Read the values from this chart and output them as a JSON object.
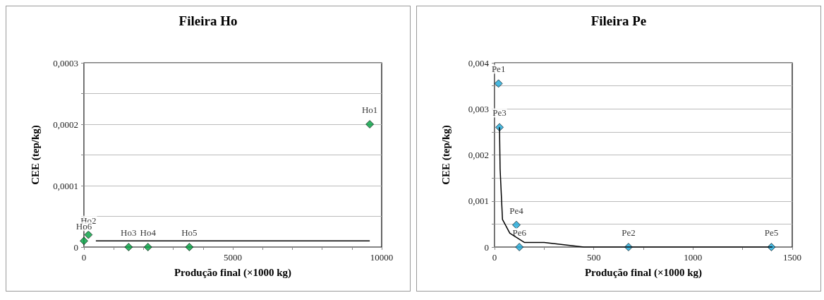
{
  "chart_data": [
    {
      "type": "scatter",
      "title": "Fileira Ho",
      "xlabel": "Produção final (×1000 kg)",
      "ylabel": "CEE (tep/kg)",
      "x": [
        9600,
        150,
        1500,
        2150,
        3540,
        0
      ],
      "series": [
        {
          "color": "#00a040",
          "marker": "diamond",
          "values": [
            0.0002,
            2e-05,
            0,
            0,
            0,
            1e-05
          ]
        },
        {
          "type": "line",
          "color": "#000000",
          "marker": "none",
          "x": [
            400,
            9600
          ],
          "values": [
            1e-05,
            1e-05
          ]
        }
      ],
      "annotations": [
        {
          "text": "Ho1",
          "x": 9600,
          "y": 0.0002
        },
        {
          "text": "Ho2",
          "x": 150,
          "y": 2e-05
        },
        {
          "text": "Ho3",
          "x": 1500,
          "y": 0
        },
        {
          "text": "Ho4",
          "x": 2150,
          "y": 0
        },
        {
          "text": "Ho5",
          "x": 3540,
          "y": 0
        },
        {
          "text": "Ho6",
          "x": 0,
          "y": 1e-05
        }
      ],
      "xlim": [
        0,
        10000
      ],
      "xticks": [
        0,
        {
          "value": 1000,
          "label": null
        },
        {
          "value": 2000,
          "label": null
        },
        {
          "value": 3000,
          "label": null
        },
        {
          "value": 4000,
          "label": null
        },
        5000,
        {
          "value": 6000,
          "label": null
        },
        {
          "value": 7000,
          "label": null
        },
        {
          "value": 8000,
          "label": null
        },
        {
          "value": 9000,
          "label": null
        },
        10000
      ],
      "ylim": [
        0,
        0.0003
      ],
      "yticks": [
        0,
        {
          "value": 5e-05,
          "label": null
        },
        {
          "value": 0.0001,
          "label": "0,0001"
        },
        {
          "value": 0.00015,
          "label": null
        },
        {
          "value": 0.0002,
          "label": "0,0002"
        },
        {
          "value": 0.00025,
          "label": null
        },
        {
          "value": 0.0003,
          "label": "0,0003"
        }
      ],
      "grid": "y"
    },
    {
      "type": "scatter",
      "title": "Fileira Pe",
      "xlabel": "Produção final (×1000 kg)",
      "ylabel": "CEE (tep/kg)",
      "x": [
        20,
        675,
        25,
        110,
        1395,
        125
      ],
      "series": [
        {
          "color": "#1ba8d8",
          "marker": "diamond",
          "values": [
            0.00355,
            0,
            0.0026,
            0.00048,
            0,
            0
          ]
        },
        {
          "type": "line",
          "color": "#000000",
          "marker": "none",
          "x": [
            25,
            28,
            40,
            77,
            150,
            250,
            450,
            1400
          ],
          "values": [
            0.0026,
            0.0017,
            0.0006,
            0.0003,
            0.0001,
            0.0001,
            0,
            0
          ]
        }
      ],
      "annotations": [
        {
          "text": "Pe1",
          "x": 20,
          "y": 0.00355
        },
        {
          "text": "Pe2",
          "x": 675,
          "y": 0
        },
        {
          "text": "Pe3",
          "x": 25,
          "y": 0.0026
        },
        {
          "text": "Pe4",
          "x": 110,
          "y": 0.00048
        },
        {
          "text": "Pe5",
          "x": 1395,
          "y": 0
        },
        {
          "text": "Pe6",
          "x": 125,
          "y": 0
        }
      ],
      "xlim": [
        0,
        1500
      ],
      "xticks": [
        0,
        {
          "value": 250,
          "label": null
        },
        500,
        {
          "value": 750,
          "label": null
        },
        1000,
        {
          "value": 1250,
          "label": null
        },
        1500
      ],
      "ylim": [
        0,
        0.004
      ],
      "yticks": [
        0,
        {
          "value": 0.0005,
          "label": null
        },
        {
          "value": 0.001,
          "label": "0,001"
        },
        {
          "value": 0.0015,
          "label": null
        },
        {
          "value": 0.002,
          "label": "0,002"
        },
        {
          "value": 0.0025,
          "label": null
        },
        {
          "value": 0.003,
          "label": "0,003"
        },
        {
          "value": 0.0035,
          "label": null
        },
        {
          "value": 0.004,
          "label": "0,004"
        }
      ],
      "grid": "y"
    }
  ]
}
